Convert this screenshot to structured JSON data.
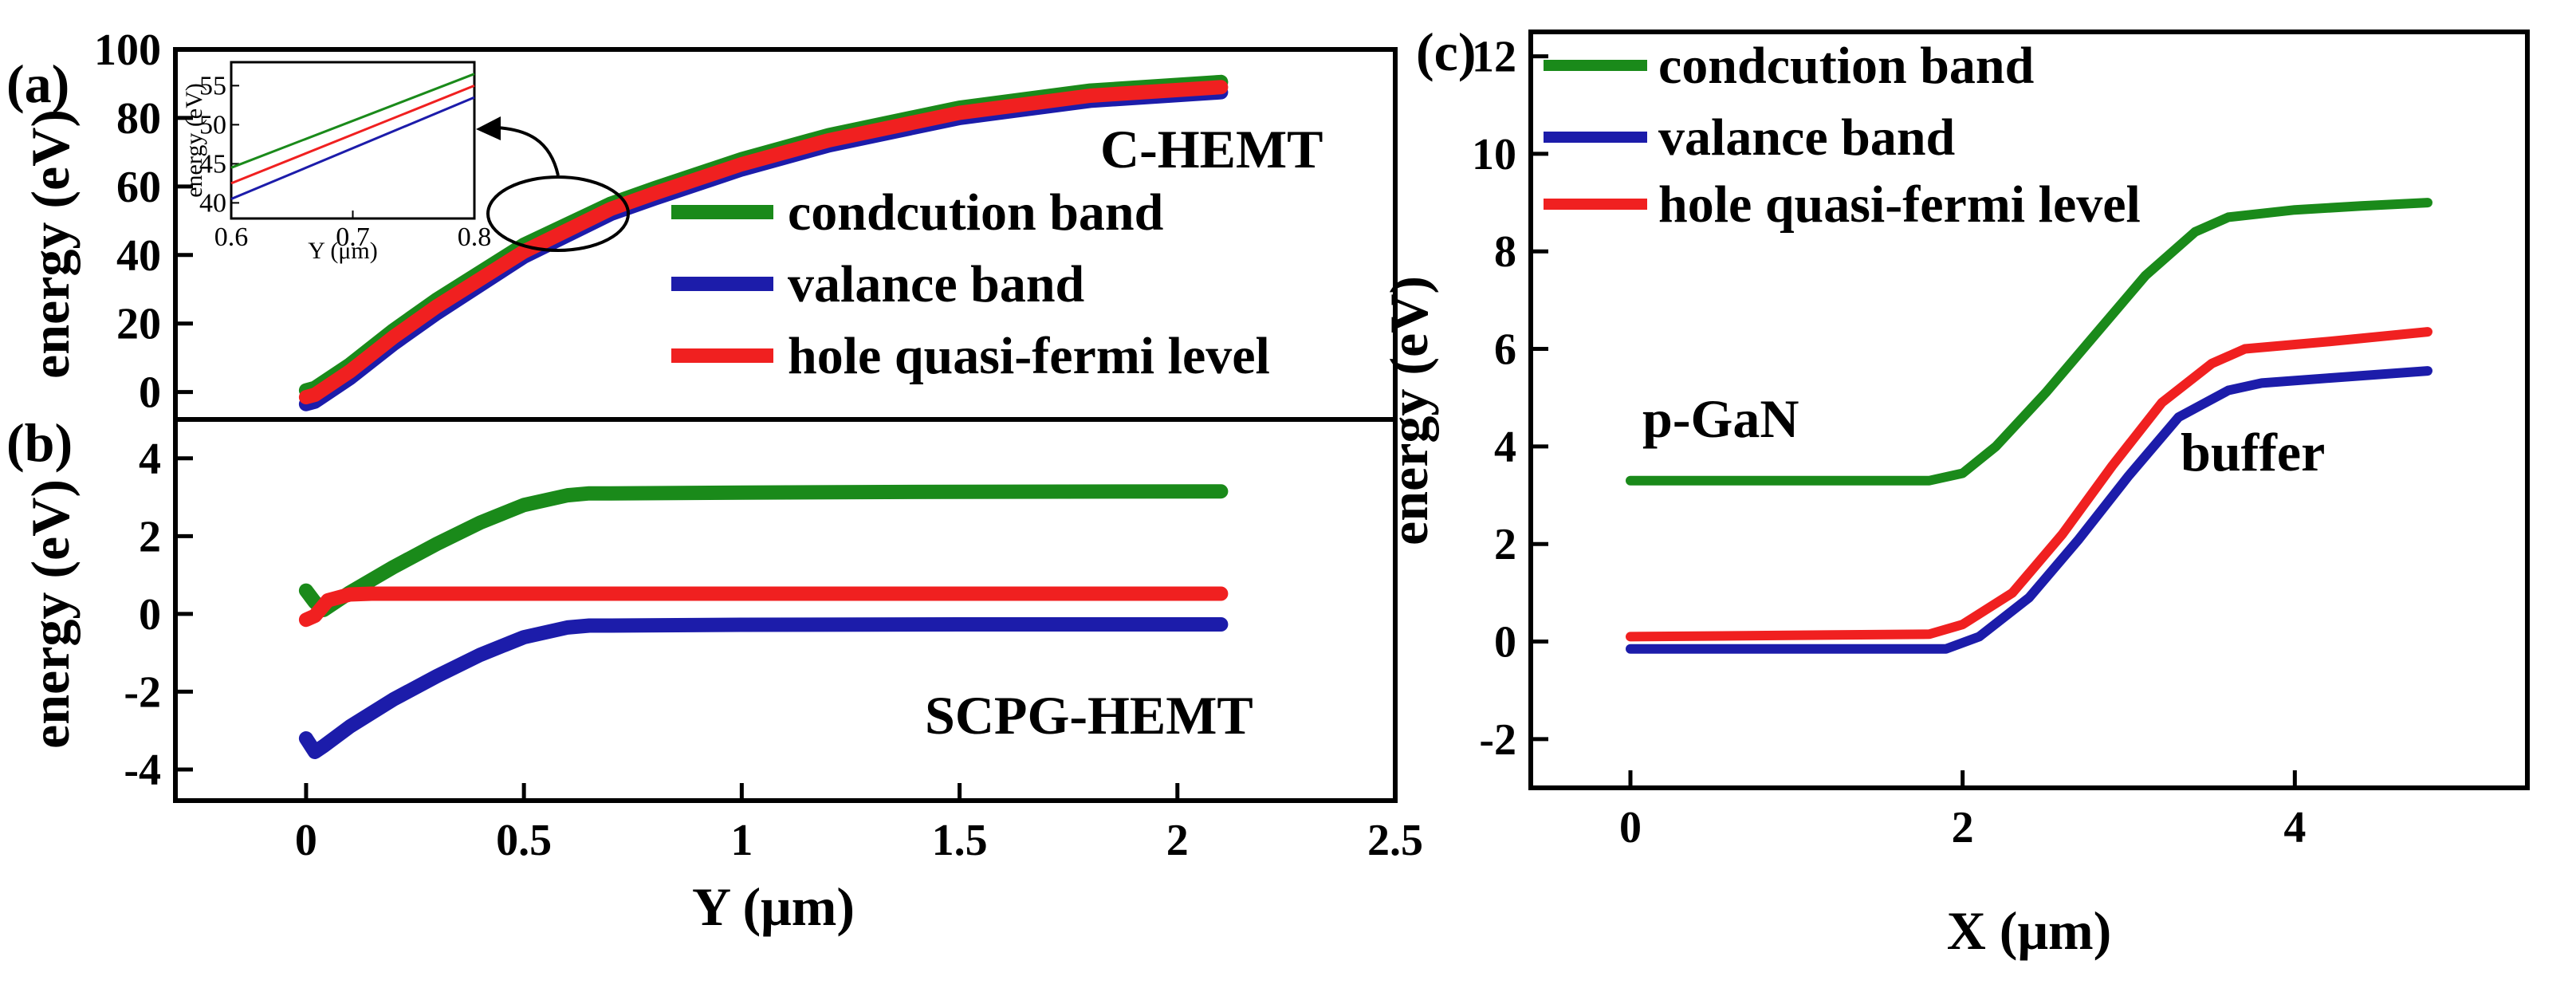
{
  "panels": {
    "a": {
      "label": "(a)",
      "annotation": "C-HEMT"
    },
    "b": {
      "label": "(b)",
      "annotation": "SCPG-HEMT"
    },
    "c": {
      "label": "(c)",
      "annotation_left": "p-GaN",
      "annotation_right": "buffer"
    }
  },
  "legend": {
    "items": [
      {
        "label": "condcution band",
        "color": "#1a8a1a"
      },
      {
        "label": "valance band",
        "color": "#1c1caa"
      },
      {
        "label": "hole quasi-fermi level",
        "color": "#f02020"
      }
    ]
  },
  "inset": {
    "x_label": "Y (μm)",
    "y_label": "energy (eV)"
  },
  "chart_data": [
    {
      "id": "a",
      "type": "line",
      "title": "C-HEMT",
      "xlabel": "",
      "ylabel": "energy (eV)",
      "xlim": [
        -0.3,
        2.5
      ],
      "ylim": [
        -8,
        100
      ],
      "xticks": [],
      "yticks": [
        0,
        20,
        40,
        60,
        80,
        100
      ],
      "series": [
        {
          "name": "condcution band",
          "color": "#1a8a1a",
          "x": [
            0.0,
            0.02,
            0.1,
            0.2,
            0.3,
            0.5,
            0.7,
            0.8,
            1.0,
            1.2,
            1.5,
            1.8,
            2.1
          ],
          "y": [
            0.5,
            1.2,
            8,
            18,
            27,
            43,
            55,
            59.5,
            68,
            75,
            83,
            88,
            90.5
          ]
        },
        {
          "name": "valance band",
          "color": "#1c1caa",
          "x": [
            0.0,
            0.02,
            0.1,
            0.2,
            0.3,
            0.5,
            0.7,
            0.8,
            1.0,
            1.2,
            1.5,
            1.8,
            2.1
          ],
          "y": [
            -3.5,
            -2.8,
            4,
            14,
            23,
            39.5,
            52,
            56.5,
            65,
            72,
            80,
            85,
            87.5
          ]
        },
        {
          "name": "hole quasi-fermi level",
          "color": "#f02020",
          "x": [
            0.0,
            0.02,
            0.1,
            0.2,
            0.3,
            0.5,
            0.7,
            0.8,
            1.0,
            1.2,
            1.5,
            1.8,
            2.1
          ],
          "y": [
            -1.5,
            -0.8,
            6,
            16,
            25,
            41,
            53.5,
            58,
            66.5,
            73.5,
            81.5,
            86.5,
            89
          ]
        }
      ],
      "inset": {
        "xlim": [
          0.6,
          0.8
        ],
        "ylim": [
          38,
          58
        ],
        "xticks": [
          0.6,
          0.7,
          0.8
        ],
        "yticks": [
          40,
          45,
          50,
          55
        ],
        "series": [
          {
            "name": "condcution band",
            "x": [
              0.6,
              0.8
            ],
            "y": [
              44.5,
              56.5
            ]
          },
          {
            "name": "hole quasi-fermi level",
            "x": [
              0.6,
              0.8
            ],
            "y": [
              42.5,
              55
            ]
          },
          {
            "name": "valance band",
            "x": [
              0.6,
              0.8
            ],
            "y": [
              40.5,
              53.5
            ]
          }
        ]
      }
    },
    {
      "id": "b",
      "type": "line",
      "title": "SCPG-HEMT",
      "xlabel": "Y (μm)",
      "ylabel": "energy (eV)",
      "xlim": [
        -0.3,
        2.5
      ],
      "ylim": [
        -4.8,
        5
      ],
      "xticks": [
        0,
        0.5,
        1,
        1.5,
        2,
        2.5
      ],
      "yticks": [
        -4,
        -2,
        0,
        2,
        4
      ],
      "series": [
        {
          "name": "condcution band",
          "color": "#1a8a1a",
          "x": [
            0.0,
            0.02,
            0.04,
            0.1,
            0.2,
            0.3,
            0.4,
            0.5,
            0.6,
            0.65,
            0.7,
            1.0,
            1.5,
            2.1
          ],
          "y": [
            0.6,
            0.3,
            0.1,
            0.55,
            1.2,
            1.8,
            2.35,
            2.8,
            3.05,
            3.1,
            3.1,
            3.12,
            3.14,
            3.15
          ]
        },
        {
          "name": "valance band",
          "color": "#1c1caa",
          "x": [
            0.0,
            0.02,
            0.04,
            0.1,
            0.2,
            0.3,
            0.4,
            0.5,
            0.6,
            0.65,
            0.7,
            1.0,
            1.5,
            2.1
          ],
          "y": [
            -3.2,
            -3.55,
            -3.4,
            -2.9,
            -2.2,
            -1.6,
            -1.05,
            -0.6,
            -0.35,
            -0.3,
            -0.3,
            -0.28,
            -0.27,
            -0.27
          ]
        },
        {
          "name": "hole quasi-fermi level",
          "color": "#f02020",
          "x": [
            0.0,
            0.02,
            0.05,
            0.1,
            0.15,
            0.5,
            1.0,
            1.5,
            2.1
          ],
          "y": [
            -0.15,
            -0.05,
            0.35,
            0.5,
            0.52,
            0.52,
            0.52,
            0.52,
            0.52
          ]
        }
      ]
    },
    {
      "id": "c",
      "type": "line",
      "title": "",
      "xlabel": "X (μm)",
      "ylabel": "energy (eV)",
      "xlim": [
        -0.6,
        5.4
      ],
      "ylim": [
        -3,
        12.5
      ],
      "xticks": [
        0,
        2,
        4
      ],
      "yticks": [
        -2,
        0,
        2,
        4,
        6,
        8,
        10,
        12
      ],
      "series": [
        {
          "name": "condcution band",
          "color": "#1a8a1a",
          "x": [
            0,
            1.8,
            2.0,
            2.2,
            2.5,
            2.8,
            3.1,
            3.4,
            3.6,
            4.0,
            4.4,
            4.8
          ],
          "y": [
            3.3,
            3.3,
            3.45,
            4.0,
            5.1,
            6.3,
            7.5,
            8.4,
            8.7,
            8.85,
            8.93,
            9.0
          ]
        },
        {
          "name": "valance band",
          "color": "#1c1caa",
          "x": [
            0,
            1.9,
            2.1,
            2.4,
            2.7,
            3.0,
            3.3,
            3.6,
            3.8,
            4.2,
            4.8
          ],
          "y": [
            -0.15,
            -0.15,
            0.1,
            0.9,
            2.1,
            3.4,
            4.6,
            5.15,
            5.3,
            5.4,
            5.55
          ]
        },
        {
          "name": "hole quasi-fermi level",
          "color": "#f02020",
          "x": [
            0,
            1.8,
            2.0,
            2.3,
            2.6,
            2.9,
            3.2,
            3.5,
            3.7,
            4.2,
            4.8
          ],
          "y": [
            0.1,
            0.15,
            0.35,
            1.0,
            2.2,
            3.6,
            4.9,
            5.7,
            6.0,
            6.15,
            6.35
          ]
        }
      ]
    }
  ]
}
